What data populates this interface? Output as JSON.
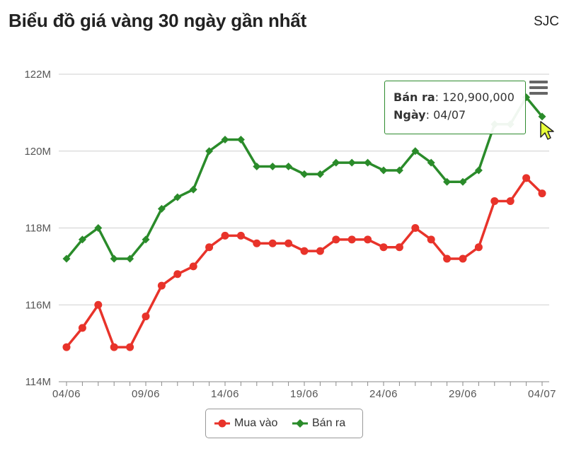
{
  "title": "Biểu đồ giá vàng 30 ngày gần nhất",
  "brand": "SJC",
  "chart_data": {
    "type": "line",
    "yticks": [
      "114M",
      "116M",
      "118M",
      "120M",
      "122M"
    ],
    "ylim": [
      114000000,
      122000000
    ],
    "xtick_labels": [
      "04/06",
      "09/06",
      "14/06",
      "19/06",
      "24/06",
      "29/06",
      "04/07"
    ],
    "grid": true,
    "legend_position": "bottom",
    "series": [
      {
        "name": "Mua vào",
        "color": "#e8332a",
        "marker": "circle",
        "values": [
          114900000,
          115400000,
          116000000,
          114900000,
          114900000,
          115700000,
          116500000,
          116800000,
          117000000,
          117500000,
          117800000,
          117800000,
          117600000,
          117600000,
          117600000,
          117400000,
          117400000,
          117700000,
          117700000,
          117700000,
          117500000,
          117500000,
          118000000,
          117700000,
          117200000,
          117200000,
          117500000,
          118700000,
          118700000,
          119300000,
          118900000
        ]
      },
      {
        "name": "Bán ra",
        "color": "#2a8b2a",
        "marker": "diamond",
        "values": [
          117200000,
          117700000,
          118000000,
          117200000,
          117200000,
          117700000,
          118500000,
          118800000,
          119000000,
          120000000,
          120300000,
          120300000,
          119600000,
          119600000,
          119600000,
          119400000,
          119400000,
          119700000,
          119700000,
          119700000,
          119500000,
          119500000,
          120000000,
          119700000,
          119200000,
          119200000,
          119500000,
          120700000,
          120700000,
          121400000,
          120900000
        ]
      }
    ]
  },
  "tooltip": {
    "series_label": "Bán ra",
    "value": "120,900,000",
    "date_label": "Ngày",
    "date": "04/07"
  },
  "menu_icon": "hamburger-menu-icon"
}
